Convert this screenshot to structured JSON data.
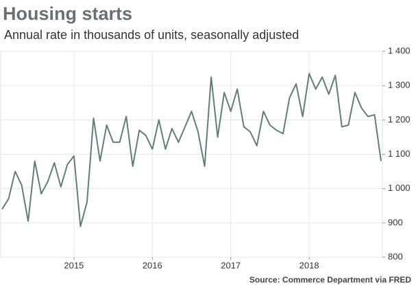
{
  "chart_data": {
    "type": "line",
    "title": "Housing starts",
    "subtitle": "Annual rate in thousands of units, seasonally adjusted",
    "source": "Source: Commerce Department via FRED",
    "categories": [
      null,
      null,
      null,
      null,
      null,
      null,
      null,
      null,
      null,
      null,
      null,
      "2015",
      null,
      null,
      null,
      null,
      null,
      null,
      null,
      null,
      null,
      null,
      null,
      "2016",
      null,
      null,
      null,
      null,
      null,
      null,
      null,
      null,
      null,
      null,
      null,
      "2017",
      null,
      null,
      null,
      null,
      null,
      null,
      null,
      null,
      null,
      null,
      null,
      "2018",
      null,
      null,
      null,
      null,
      null,
      null,
      null,
      null,
      null,
      null,
      null
    ],
    "series": [
      {
        "name": "Housing starts",
        "color": "#617d79",
        "values": [
          940,
          970,
          1050,
          1010,
          905,
          1080,
          985,
          1020,
          1075,
          1005,
          1070,
          1095,
          890,
          960,
          1205,
          1080,
          1185,
          1135,
          1135,
          1210,
          1065,
          1170,
          1155,
          1115,
          1200,
          1115,
          1175,
          1135,
          1180,
          1225,
          1165,
          1065,
          1325,
          1150,
          1280,
          1225,
          1290,
          1180,
          1165,
          1125,
          1225,
          1185,
          1170,
          1160,
          1265,
          1305,
          1210,
          1335,
          1290,
          1325,
          1275,
          1330,
          1180,
          1185,
          1280,
          1235,
          1210,
          1215,
          1080
        ]
      }
    ],
    "ylim": [
      800,
      1400
    ],
    "yticks": [
      800,
      900,
      {
        "value": 1000,
        "label": "1 000"
      },
      {
        "value": 1100,
        "label": "1 100"
      },
      {
        "value": 1200,
        "label": "1 200"
      },
      {
        "value": 1300,
        "label": "1 300"
      },
      {
        "value": 1400,
        "label": "1 400"
      }
    ],
    "grid": true
  }
}
